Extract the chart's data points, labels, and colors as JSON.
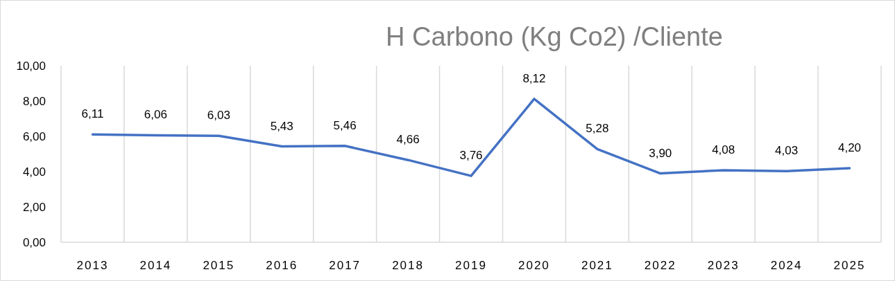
{
  "chart_data": {
    "type": "line",
    "title": "H Carbono (Kg Co2) /Cliente",
    "categories": [
      "2013",
      "2014",
      "2015",
      "2016",
      "2017",
      "2018",
      "2019",
      "2020",
      "2021",
      "2022",
      "2023",
      "2024",
      "2025"
    ],
    "series": [
      {
        "color": "#4472c4",
        "values": [
          6.11,
          6.06,
          6.03,
          5.43,
          5.46,
          4.66,
          3.76,
          8.12,
          5.28,
          3.9,
          4.08,
          4.03,
          4.2
        ],
        "value_labels": [
          "6,11",
          "6,06",
          "6,03",
          "5,43",
          "5,46",
          "4,66",
          "3,76",
          "8,12",
          "5,28",
          "3,90",
          "4,08",
          "4,03",
          "4,20"
        ]
      }
    ],
    "ylim": [
      0,
      10
    ],
    "yticks": [
      {
        "value": 0,
        "label": "0,00"
      },
      {
        "value": 2,
        "label": "2,00"
      },
      {
        "value": 4,
        "label": "4,00"
      },
      {
        "value": 6,
        "label": "6,00"
      },
      {
        "value": 8,
        "label": "8,00"
      },
      {
        "value": 10,
        "label": "10,00"
      }
    ],
    "grid": "x",
    "marker": "none",
    "line_style": "solid"
  }
}
